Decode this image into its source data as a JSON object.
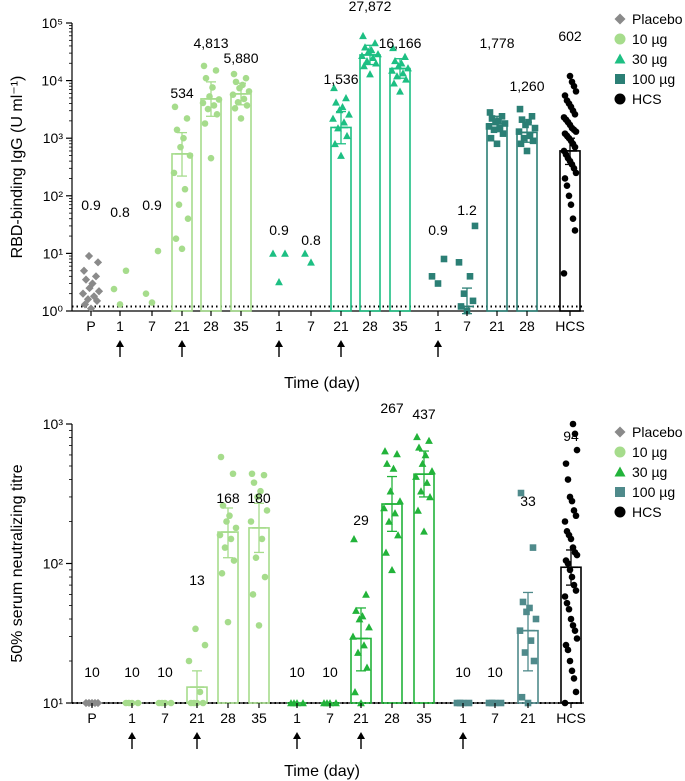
{
  "colors": {
    "placebo": "#8a8a8a",
    "dose10": "#a6dc8c",
    "dose30": "#1dbf83",
    "dose100": "#2b7f75",
    "hcs": "#000000",
    "neut10": "#a6dc8c",
    "neut30": "#22b33a",
    "neut100": "#4f8a8b"
  },
  "legend_labels": [
    "Placebo",
    "10 µg",
    "30 µg",
    "100 µg",
    "HCS"
  ],
  "chart_data": [
    {
      "type": "bar",
      "ylabel": "RBD-binding IgG (U ml⁻¹)",
      "xlabel": "Time (day)",
      "y_scale": "log",
      "ylim": [
        1,
        100000
      ],
      "y_ticks": [
        "10⁰",
        "10¹",
        "10²",
        "10³",
        "10⁴",
        "10⁵"
      ],
      "lloq": 1.2,
      "legend": [
        "Placebo",
        "10 µg",
        "30 µg",
        "100 µg",
        "HCS"
      ],
      "legend_position": "right",
      "categories": [
        "P",
        "1",
        "7",
        "21",
        "28",
        "35",
        "1",
        "7",
        "21",
        "28",
        "35",
        "1",
        "7",
        "21",
        "28",
        "HCS"
      ],
      "groups": [
        "Placebo",
        "10 µg",
        "10 µg",
        "10 µg",
        "10 µg",
        "10 µg",
        "30 µg",
        "30 µg",
        "30 µg",
        "30 µg",
        "30 µg",
        "100 µg",
        "100 µg",
        "100 µg",
        "100 µg",
        "HCS"
      ],
      "arrow_days_index": [
        1,
        3,
        6,
        8,
        11
      ],
      "values": [
        0.9,
        0.8,
        0.9,
        534,
        4813,
        5880,
        0.9,
        0.8,
        1536,
        27872,
        16166,
        0.9,
        1.2,
        1778,
        1260,
        602
      ],
      "value_labels": [
        "0.9",
        "0.8",
        "0.9",
        "534",
        "4,813",
        "5,880",
        "0.9",
        "0.8",
        "1,536",
        "27,872",
        "16,166",
        "0.9",
        "1.2",
        "1,778",
        "1,260",
        "602"
      ],
      "error_low": [
        null,
        null,
        null,
        220,
        2400,
        3800,
        null,
        null,
        800,
        19000,
        11000,
        null,
        0.7,
        1300,
        850,
        350
      ],
      "error_high": [
        null,
        null,
        null,
        1250,
        9500,
        9000,
        null,
        null,
        2900,
        41000,
        24000,
        null,
        2.5,
        2400,
        1900,
        1000
      ],
      "points": [
        [
          1.1,
          1.3,
          1.5,
          1.6,
          1.8,
          2,
          2.2,
          2.5,
          3,
          3.5,
          4,
          5,
          7,
          9
        ],
        [
          1.3,
          2.4,
          5
        ],
        [
          1.4,
          2,
          11
        ],
        [
          12,
          18,
          40,
          70,
          130,
          250,
          500,
          700,
          1000,
          1400,
          2200,
          3500
        ],
        [
          450,
          1800,
          2600,
          3200,
          3700,
          4100,
          4700,
          5300,
          7600,
          11000,
          15000,
          18000
        ],
        [
          2200,
          3300,
          3700,
          4200,
          4800,
          5700,
          6500,
          7400,
          8400,
          9500,
          11000,
          13000
        ],
        [
          3.2,
          10,
          10
        ],
        [
          7,
          10
        ],
        [
          500,
          800,
          1100,
          1500,
          1900,
          2200,
          2600,
          3100,
          3500,
          4200,
          5000,
          7500
        ],
        [
          13000,
          18000,
          20000,
          22000,
          25000,
          27000,
          29000,
          32000,
          34000,
          38000,
          45000,
          60000
        ],
        [
          6500,
          9000,
          10500,
          12000,
          13500,
          15000,
          16500,
          18000,
          20000,
          22000,
          26000,
          37000
        ],
        [
          3,
          4,
          8
        ],
        [
          1,
          1.2,
          1.5,
          2,
          4,
          7,
          30
        ],
        [
          800,
          1000,
          1200,
          1400,
          1500,
          1600,
          1800,
          1900,
          2000,
          2200,
          2400,
          2800
        ],
        [
          600,
          800,
          900,
          1000,
          1100,
          1300,
          1500,
          1700,
          1900,
          2100,
          2400,
          3200
        ],
        [
          4.5,
          25,
          40,
          70,
          100,
          150,
          200,
          250,
          300,
          350,
          400,
          450,
          520,
          600,
          700,
          800,
          900,
          1000,
          1100,
          1200,
          1300,
          1400,
          1500,
          1700,
          1900,
          2100,
          2300,
          2600,
          3000,
          3500,
          4000,
          4500,
          5500,
          6500,
          8000,
          9500,
          12000
        ]
      ]
    },
    {
      "type": "bar",
      "ylabel": "50% serum neutralizing titre",
      "xlabel": "Time (day)",
      "y_scale": "log",
      "ylim": [
        10,
        1000
      ],
      "y_ticks": [
        "10¹",
        "10²",
        "10³"
      ],
      "lloq": 10,
      "legend": [
        "Placebo",
        "10 µg",
        "30 µg",
        "100 µg",
        "HCS"
      ],
      "legend_position": "right",
      "categories": [
        "P",
        "1",
        "7",
        "21",
        "28",
        "35",
        "1",
        "7",
        "21",
        "28",
        "35",
        "1",
        "7",
        "21",
        "HCS"
      ],
      "groups": [
        "Placebo",
        "10 µg",
        "10 µg",
        "10 µg",
        "10 µg",
        "10 µg",
        "30 µg",
        "30 µg",
        "30 µg",
        "30 µg",
        "30 µg",
        "100 µg",
        "100 µg",
        "100 µg",
        "HCS"
      ],
      "arrow_days_index": [
        1,
        3,
        6,
        8,
        11
      ],
      "values": [
        10,
        10,
        10,
        13,
        168,
        180,
        10,
        10,
        29,
        267,
        437,
        10,
        10,
        33,
        94
      ],
      "value_labels": [
        "10",
        "10",
        "10",
        "13",
        "168",
        "180",
        "10",
        "10",
        "29",
        "267",
        "437",
        "10",
        "10",
        "33",
        "94"
      ],
      "error_low": [
        null,
        null,
        null,
        10,
        110,
        120,
        null,
        null,
        17,
        170,
        300,
        null,
        null,
        17,
        70
      ],
      "error_high": [
        null,
        null,
        null,
        17,
        250,
        270,
        null,
        null,
        48,
        420,
        640,
        null,
        null,
        62,
        125
      ],
      "points": [
        [
          10,
          10,
          10,
          10,
          10
        ],
        [
          10,
          10,
          10,
          10
        ],
        [
          10,
          10,
          10,
          10
        ],
        [
          10,
          10,
          10,
          10,
          12,
          20,
          26,
          34
        ],
        [
          38,
          85,
          105,
          130,
          150,
          160,
          180,
          200,
          220,
          260,
          440,
          580
        ],
        [
          36,
          60,
          80,
          110,
          150,
          200,
          240,
          300,
          330,
          380,
          430,
          440
        ],
        [
          10,
          10,
          10,
          10
        ],
        [
          10,
          10,
          10,
          10
        ],
        [
          10,
          12,
          18,
          23,
          26,
          30,
          35,
          40,
          42,
          46,
          60,
          150
        ],
        [
          90,
          120,
          160,
          200,
          230,
          250,
          280,
          330,
          480,
          520,
          610,
          640
        ],
        [
          170,
          240,
          300,
          330,
          380,
          420,
          460,
          520,
          600,
          680,
          760,
          810
        ],
        [
          10,
          10,
          10,
          10
        ],
        [
          10,
          10,
          10,
          10
        ],
        [
          10,
          11,
          20,
          23,
          28,
          33,
          40,
          45,
          48,
          53,
          130,
          320
        ],
        [
          10,
          12,
          15,
          17,
          20,
          24,
          26,
          29,
          33,
          36,
          40,
          47,
          52,
          58,
          64,
          70,
          80,
          90,
          100,
          105,
          115,
          120,
          130,
          150,
          160,
          170,
          200,
          220,
          240,
          280,
          300,
          400,
          520,
          650,
          850,
          1000
        ]
      ]
    }
  ]
}
